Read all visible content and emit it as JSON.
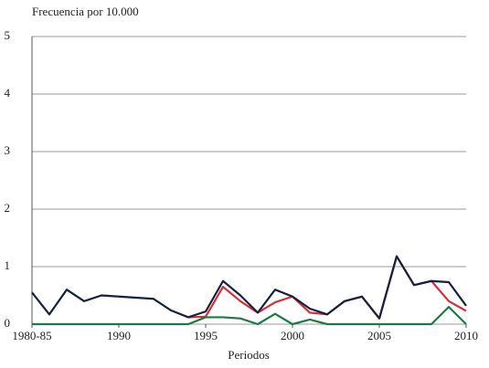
{
  "chart_data": {
    "type": "line",
    "y_title": "Frecuencia por 10.000",
    "x_title": "Periodos",
    "x": [
      1985,
      1986,
      1987,
      1988,
      1989,
      1990,
      1991,
      1992,
      1993,
      1994,
      1995,
      1996,
      1997,
      1998,
      1999,
      2000,
      2001,
      2002,
      2003,
      2004,
      2005,
      2006,
      2007,
      2008,
      2009,
      2010
    ],
    "xlim": [
      1985,
      2010
    ],
    "xticks": [
      {
        "value": 1985,
        "label": "1980-85"
      },
      1990,
      1995,
      2000,
      2005,
      2010
    ],
    "ylim": [
      0,
      5
    ],
    "yticks": [
      0,
      1,
      2,
      3,
      4,
      5
    ],
    "grid": true,
    "series": [
      {
        "color": "#d4303a",
        "values": [
          null,
          null,
          null,
          null,
          null,
          null,
          null,
          null,
          null,
          0.12,
          0.13,
          0.65,
          0.4,
          0.2,
          0.38,
          0.48,
          0.2,
          0.17,
          0.4,
          0.48,
          0.1,
          1.18,
          0.68,
          0.75,
          0.4,
          0.23
        ]
      },
      {
        "color": "#14213d",
        "values": [
          0.55,
          0.17,
          0.6,
          0.4,
          0.5,
          0.48,
          0.46,
          0.44,
          0.24,
          0.12,
          0.22,
          0.75,
          0.5,
          0.2,
          0.6,
          0.48,
          0.27,
          0.17,
          0.4,
          0.48,
          0.1,
          1.18,
          0.68,
          0.75,
          0.73,
          0.32
        ]
      },
      {
        "color": "#1d7a45",
        "values": [
          0,
          0,
          0,
          0,
          0,
          0,
          0,
          0,
          0,
          0,
          0.12,
          0.12,
          0.1,
          0,
          0.18,
          0,
          0.08,
          0,
          0,
          0,
          0,
          0,
          0,
          0,
          0.3,
          0
        ]
      }
    ]
  }
}
